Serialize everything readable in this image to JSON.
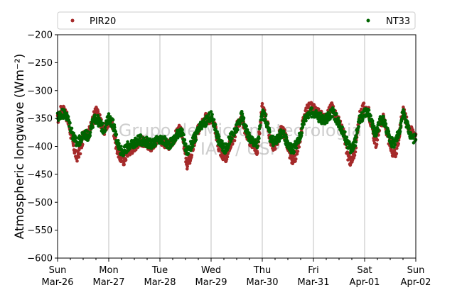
{
  "chart_data": {
    "type": "scatter",
    "ylabel": "Atmospheric longwave (Wm⁻²)",
    "ylim": [
      -600,
      -200
    ],
    "yticks": [
      "−200",
      "−250",
      "−300",
      "−350",
      "−400",
      "−450",
      "−500",
      "−550",
      "−600"
    ],
    "xlim": [
      "2023-03-26",
      "2023-04-02"
    ],
    "xticks": [
      {
        "day": "Sun",
        "date": "Mar-26"
      },
      {
        "day": "Mon",
        "date": "Mar-27"
      },
      {
        "day": "Tue",
        "date": "Mar-28"
      },
      {
        "day": "Wed",
        "date": "Mar-29"
      },
      {
        "day": "Thu",
        "date": "Mar-30"
      },
      {
        "day": "Fri",
        "date": "Mar-31"
      },
      {
        "day": "Sat",
        "date": "Apr-01"
      },
      {
        "day": "Sun",
        "date": "Apr-02"
      }
    ],
    "grid": "vertical",
    "legend_position": "top",
    "watermark": [
      "Grupo de Micrometeorologia",
      "IAG / USP"
    ],
    "series": [
      {
        "name": "PIR20",
        "color": "#a52a2a",
        "x_days": [
          0.0,
          0.08,
          0.15,
          0.22,
          0.3,
          0.37,
          0.45,
          0.52,
          0.6,
          0.68,
          0.75,
          0.82,
          0.9,
          1.0,
          1.08,
          1.15,
          1.22,
          1.3,
          1.37,
          1.45,
          1.52,
          1.6,
          1.68,
          1.75,
          1.82,
          1.9,
          2.0,
          2.08,
          2.15,
          2.22,
          2.3,
          2.37,
          2.45,
          2.52,
          2.6,
          2.68,
          2.75,
          2.82,
          2.9,
          3.0,
          3.08,
          3.15,
          3.22,
          3.3,
          3.37,
          3.45,
          3.52,
          3.6,
          3.68,
          3.75,
          3.82,
          3.9,
          4.0,
          4.08,
          4.15,
          4.22,
          4.3,
          4.37,
          4.45,
          4.52,
          4.6,
          4.68,
          4.75,
          4.82,
          4.9,
          5.0,
          5.08,
          5.15,
          5.22,
          5.3,
          5.37,
          5.45,
          5.52,
          5.6,
          5.68,
          5.75,
          5.82,
          5.9,
          6.0,
          6.08,
          6.15,
          6.22,
          6.3,
          6.37,
          6.45,
          6.52,
          6.6,
          6.68,
          6.75,
          6.82,
          6.9,
          7.0
        ],
        "y": [
          -352,
          -332,
          -338,
          -360,
          -395,
          -420,
          -405,
          -375,
          -380,
          -355,
          -335,
          -350,
          -372,
          -355,
          -362,
          -400,
          -420,
          -425,
          -410,
          -405,
          -398,
          -390,
          -392,
          -395,
          -400,
          -392,
          -388,
          -392,
          -398,
          -395,
          -382,
          -370,
          -380,
          -435,
          -420,
          -390,
          -370,
          -355,
          -348,
          -352,
          -368,
          -400,
          -415,
          -420,
          -395,
          -385,
          -360,
          -350,
          -375,
          -390,
          -395,
          -410,
          -330,
          -350,
          -385,
          -400,
          -390,
          -370,
          -380,
          -410,
          -430,
          -410,
          -380,
          -345,
          -330,
          -330,
          -338,
          -345,
          -352,
          -338,
          -328,
          -348,
          -360,
          -382,
          -420,
          -430,
          -402,
          -345,
          -328,
          -338,
          -370,
          -395,
          -360,
          -350,
          -380,
          -405,
          -415,
          -380,
          -330,
          -355,
          -372,
          -378
        ]
      },
      {
        "name": "NT33",
        "color": "#006400",
        "x_days": [
          0.0,
          0.08,
          0.15,
          0.22,
          0.3,
          0.37,
          0.45,
          0.52,
          0.6,
          0.68,
          0.75,
          0.82,
          0.9,
          1.0,
          1.08,
          1.15,
          1.22,
          1.3,
          1.37,
          1.45,
          1.52,
          1.6,
          1.68,
          1.75,
          1.82,
          1.9,
          2.0,
          2.08,
          2.15,
          2.22,
          2.3,
          2.37,
          2.45,
          2.52,
          2.6,
          2.68,
          2.75,
          2.82,
          2.9,
          3.0,
          3.08,
          3.15,
          3.22,
          3.3,
          3.37,
          3.45,
          3.52,
          3.6,
          3.68,
          3.75,
          3.82,
          3.9,
          4.0,
          4.08,
          4.15,
          4.22,
          4.3,
          4.37,
          4.45,
          4.52,
          4.6,
          4.68,
          4.75,
          4.82,
          4.9,
          5.0,
          5.08,
          5.15,
          5.22,
          5.3,
          5.37,
          5.45,
          5.52,
          5.6,
          5.68,
          5.75,
          5.82,
          5.9,
          6.0,
          6.08,
          6.15,
          6.22,
          6.3,
          6.37,
          6.45,
          6.52,
          6.6,
          6.68,
          6.75,
          6.82,
          6.9,
          7.0
        ],
        "y": [
          -348,
          -340,
          -342,
          -355,
          -380,
          -395,
          -388,
          -378,
          -382,
          -360,
          -348,
          -358,
          -370,
          -350,
          -358,
          -385,
          -405,
          -410,
          -400,
          -398,
          -392,
          -388,
          -390,
          -392,
          -396,
          -392,
          -388,
          -390,
          -396,
          -394,
          -385,
          -372,
          -380,
          -410,
          -400,
          -385,
          -372,
          -362,
          -355,
          -345,
          -365,
          -390,
          -400,
          -405,
          -385,
          -378,
          -362,
          -345,
          -368,
          -385,
          -390,
          -400,
          -340,
          -355,
          -382,
          -392,
          -388,
          -375,
          -385,
          -400,
          -405,
          -395,
          -378,
          -352,
          -340,
          -340,
          -345,
          -350,
          -355,
          -345,
          -338,
          -350,
          -362,
          -378,
          -398,
          -405,
          -390,
          -352,
          -340,
          -342,
          -362,
          -380,
          -355,
          -352,
          -375,
          -392,
          -395,
          -372,
          -340,
          -358,
          -380,
          -388
        ]
      }
    ]
  }
}
